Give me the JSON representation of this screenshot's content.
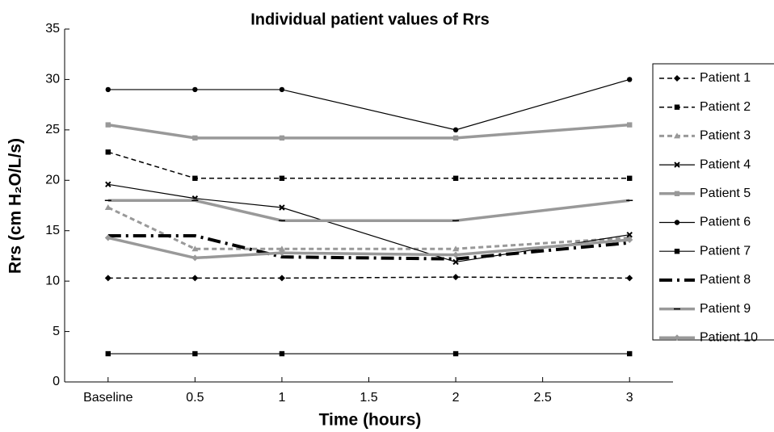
{
  "chart_data": {
    "type": "line",
    "title": "Individual patient values of Rrs",
    "x_label": "Time (hours)",
    "y_label": "Rrs (cm H₂O/L/s)",
    "x": [
      0,
      0.5,
      1,
      2,
      3
    ],
    "xlim": [
      -0.25,
      3.25
    ],
    "xticks": [
      {
        "value": 0,
        "label": "Baseline"
      },
      0.5,
      1,
      1.5,
      2,
      2.5,
      3
    ],
    "ylim": [
      0,
      35
    ],
    "yticks": [
      0,
      5,
      10,
      15,
      20,
      25,
      30,
      35
    ],
    "grid": false,
    "legend": "right",
    "series": [
      {
        "name": "Patient 1",
        "color": "#000000",
        "dash": "dashed",
        "width": 1.5,
        "marker": "diamond",
        "values": [
          10.3,
          10.3,
          10.3,
          10.4,
          10.3
        ]
      },
      {
        "name": "Patient 2",
        "color": "#000000",
        "dash": "dashed",
        "width": 1.5,
        "marker": "square",
        "values": [
          22.8,
          20.2,
          20.2,
          20.2,
          20.2
        ]
      },
      {
        "name": "Patient 3",
        "color": "#999999",
        "dash": "dashed",
        "width": 3,
        "marker": "triangle",
        "values": [
          17.3,
          13.2,
          13.2,
          13.2,
          14.3
        ]
      },
      {
        "name": "Patient 4",
        "color": "#000000",
        "dash": "solid",
        "width": 1.2,
        "marker": "x",
        "values": [
          19.6,
          18.2,
          17.3,
          11.9,
          14.6
        ]
      },
      {
        "name": "Patient 5",
        "color": "#999999",
        "dash": "solid",
        "width": 3.5,
        "marker": "square",
        "values": [
          25.5,
          24.2,
          24.2,
          24.2,
          25.5
        ]
      },
      {
        "name": "Patient 6",
        "color": "#000000",
        "dash": "solid",
        "width": 1.2,
        "marker": "circle",
        "values": [
          29,
          29,
          29,
          25,
          30
        ]
      },
      {
        "name": "Patient 7",
        "color": "#000000",
        "dash": "solid",
        "width": 1.2,
        "marker": "square",
        "values": [
          2.8,
          2.8,
          2.8,
          2.8,
          2.8
        ]
      },
      {
        "name": "Patient 8",
        "color": "#000000",
        "dash": "dashdot",
        "width": 4,
        "marker": "none",
        "values": [
          14.5,
          14.5,
          12.4,
          12.2,
          13.8
        ]
      },
      {
        "name": "Patient 9",
        "color": "#999999",
        "dash": "solid",
        "width": 3.5,
        "marker": "hline",
        "values": [
          18,
          18,
          16,
          16,
          18
        ]
      },
      {
        "name": "Patient 10",
        "color": "#999999",
        "dash": "solid",
        "width": 3.5,
        "marker": "diamond",
        "values": [
          14.3,
          12.3,
          12.8,
          12.6,
          14.1
        ]
      }
    ]
  }
}
